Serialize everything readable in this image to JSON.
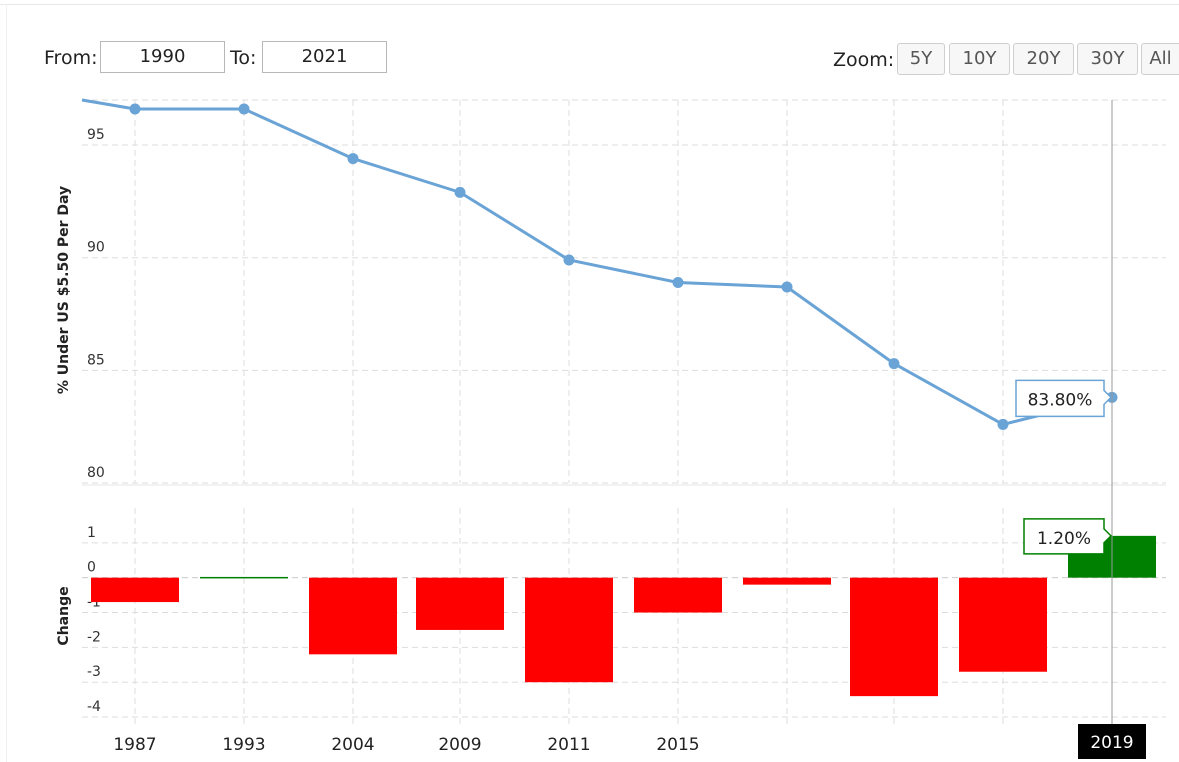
{
  "controls": {
    "from_label": "From:",
    "from_value": "1990",
    "to_label": "To:",
    "to_value": "2021",
    "zoom_label": "Zoom:",
    "zoom_buttons": [
      "5Y",
      "10Y",
      "20Y",
      "30Y",
      "All"
    ]
  },
  "colors": {
    "line": "#6aa3d5",
    "positive": "#008000",
    "negative": "#ff0000",
    "grid": "#dddddd"
  },
  "chart_data": [
    {
      "type": "line",
      "ylabel": "% Under US $5.50 Per Day",
      "xlabel": "",
      "ylim": [
        80,
        97
      ],
      "yticks": [
        80,
        85,
        90,
        95
      ],
      "grid": true,
      "x_tick_labels": [
        "1987",
        "1993",
        "2004",
        "2009",
        "2011",
        "2015",
        "",
        "",
        "",
        "2019"
      ],
      "series": [
        {
          "values": [
            96.6,
            96.6,
            94.4,
            92.9,
            89.9,
            88.9,
            88.7,
            85.3,
            82.6,
            83.8
          ]
        }
      ],
      "leading_value": 97.0,
      "tooltip": {
        "point_index": 9,
        "text": "83.80%"
      }
    },
    {
      "type": "bar",
      "ylabel": "Change",
      "ylim": [
        -4.2,
        2.0
      ],
      "yticks": [
        -4,
        -3,
        -2,
        -1,
        0,
        1
      ],
      "grid": true,
      "values": [
        -0.7,
        0.0,
        -2.2,
        -1.5,
        -3.0,
        -1.0,
        -0.2,
        -3.4,
        -2.7,
        1.2
      ],
      "tooltip": {
        "point_index": 9,
        "text": "1.20%"
      }
    }
  ],
  "x_axis": {
    "labels": [
      "1987",
      "1993",
      "2004",
      "2009",
      "2011",
      "2015"
    ],
    "highlight_label": "2019"
  }
}
